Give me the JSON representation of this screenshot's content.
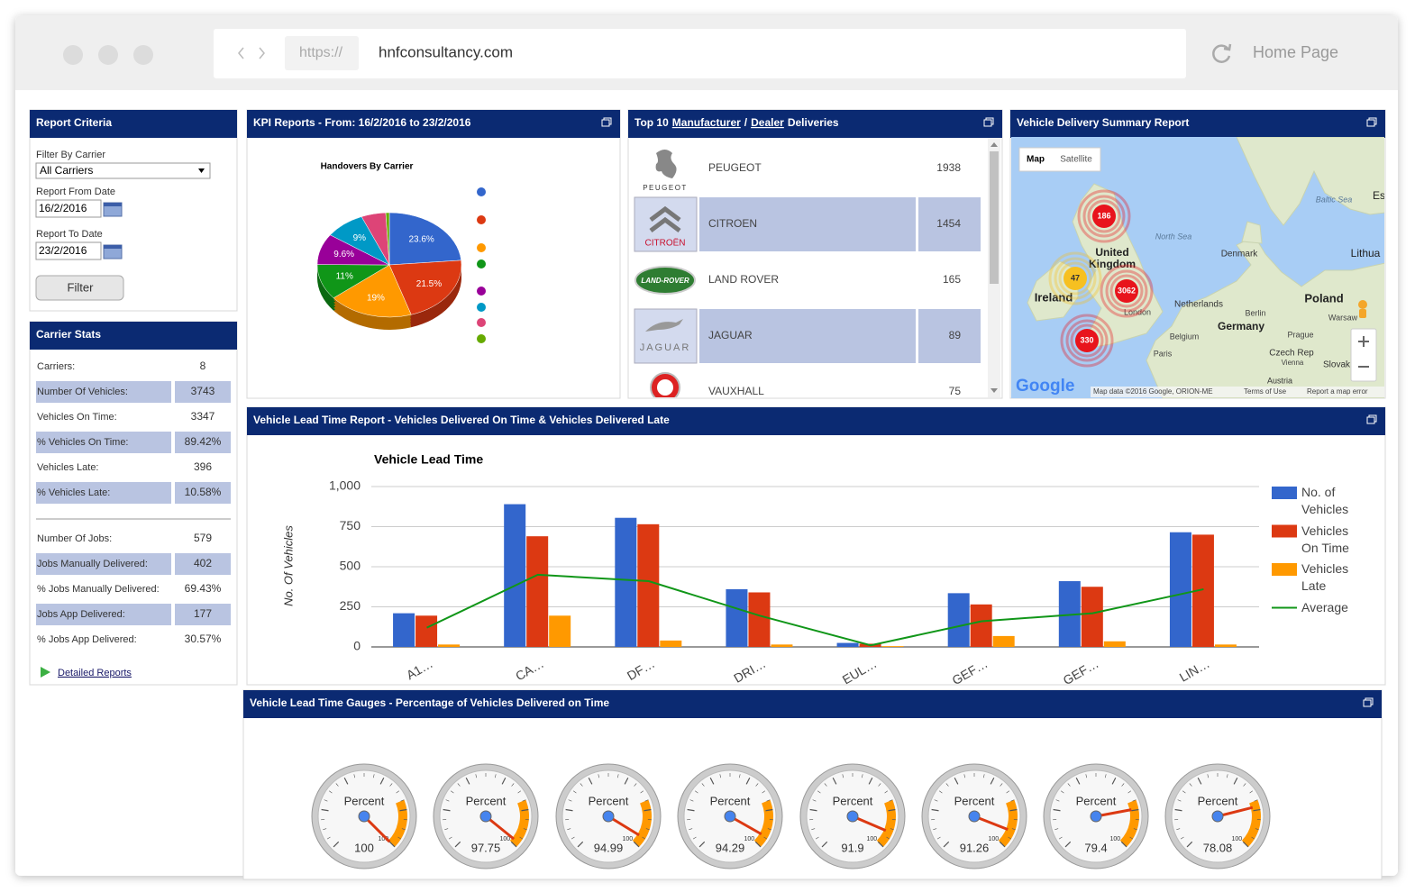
{
  "browser": {
    "scheme": "https://",
    "url": "hnfconsultancy.com",
    "home": "Home Page"
  },
  "report_criteria": {
    "title": "Report Criteria",
    "filter_label": "Filter By Carrier",
    "filter_value": "All Carriers",
    "from_label": "Report From Date",
    "from_value": "16/2/2016",
    "to_label": "Report To Date",
    "to_value": "23/2/2016",
    "button": "Filter"
  },
  "carrier_stats": {
    "title": "Carrier Stats",
    "rows": [
      [
        "Carriers:",
        "8"
      ],
      [
        "Number Of Vehicles:",
        "3743"
      ],
      [
        "Vehicles On Time:",
        "3347"
      ],
      [
        "% Vehicles On Time:",
        "89.42%"
      ],
      [
        "Vehicles Late:",
        "396"
      ],
      [
        "% Vehicles Late:",
        "10.58%"
      ],
      [
        "Number Of Jobs:",
        "579"
      ],
      [
        "Jobs Manually Delivered:",
        "402"
      ],
      [
        "% Jobs Manually Delivered:",
        "69.43%"
      ],
      [
        "Jobs App Delivered:",
        "177"
      ],
      [
        "% Jobs App Delivered:",
        "30.57%"
      ]
    ],
    "link": "Detailed Reports"
  },
  "kpi_panel": {
    "title": "KPI Reports - From: 16/2/2016 to 23/2/2016"
  },
  "deliveries": {
    "title_parts": [
      "Top 10",
      "Manufacturer",
      "/",
      "Dealer",
      "Deliveries"
    ],
    "rows": [
      {
        "logo": "PEUGEOT",
        "name": "PEUGEOT",
        "count": "1938"
      },
      {
        "logo": "CITROËN",
        "name": "CITROEN",
        "count": "1454"
      },
      {
        "logo": "LAND-ROVER",
        "name": "LAND ROVER",
        "count": "165"
      },
      {
        "logo": "JAGUAR",
        "name": "JAGUAR",
        "count": "89"
      },
      {
        "name": "VAUXHALL",
        "count": "75"
      }
    ]
  },
  "map": {
    "title": "Vehicle Delivery Summary Report",
    "buttons": [
      "Map",
      "Satellite"
    ],
    "labels": [
      "North Sea",
      "Baltic Sea",
      "Denmark",
      "United Kingdom",
      "Ireland",
      "Netherlands",
      "Berlin",
      "Poland",
      "Germany",
      "London",
      "Belgium",
      "Paris",
      "Prague",
      "Czech Rep",
      "Vienna",
      "Austria",
      "Slovak",
      "Warsaw",
      "Lithua",
      "Es"
    ],
    "clusters": [
      "186",
      "47",
      "3062",
      "330"
    ],
    "logo": "Google",
    "attribution": "Map data ©2016 Google, ORION-ME",
    "terms": "Terms of Use",
    "report": "Report a map error"
  },
  "lead_time_panel": {
    "title": "Vehicle Lead Time Report - Vehicles Delivered On Time & Vehicles Delivered Late"
  },
  "gauges": {
    "title": "Vehicle Lead Time Gauges - Percentage of Vehicles Delivered on Time",
    "label": "Percent",
    "range": [
      0,
      100
    ],
    "band": [
      75,
      100
    ],
    "band_color": "#ff9900",
    "values": [
      100,
      97.75,
      94.99,
      94.29,
      91.9,
      91.26,
      79.4,
      78.08
    ]
  },
  "chart_data": [
    {
      "type": "pie",
      "title": "Handovers By Carrier",
      "categories": [
        null,
        null,
        null,
        null,
        null,
        null,
        null,
        null
      ],
      "values": [
        23.6,
        21.5,
        19,
        11,
        9.6,
        9,
        5.5,
        0.8
      ],
      "value_labels": [
        "23.6%",
        "21.5%",
        "19%",
        "11%",
        "9.6%",
        "9%",
        null,
        null
      ],
      "colors": [
        "#3366cc",
        "#dc3912",
        "#ff9900",
        "#109618",
        "#990099",
        "#0099c6",
        "#dd4477",
        "#66aa00"
      ]
    },
    {
      "type": "bar",
      "title": "Vehicle Lead Time",
      "y_label": "No. Of Vehicles",
      "categories": [
        "A1…",
        "CA…",
        "DF…",
        "DRI…",
        "EUL…",
        "GEF…",
        "GEF…",
        "LIN…"
      ],
      "series": [
        {
          "name": "No. of Vehicles",
          "color": "#3366cc",
          "values": [
            210,
            890,
            805,
            360,
            25,
            335,
            410,
            715
          ]
        },
        {
          "name": "Vehicles On Time",
          "color": "#dc3912",
          "values": [
            195,
            690,
            765,
            340,
            20,
            265,
            375,
            700
          ]
        },
        {
          "name": "Vehicles Late",
          "color": "#ff9900",
          "values": [
            15,
            195,
            40,
            15,
            5,
            68,
            35,
            15
          ]
        },
        {
          "name": "Average",
          "type": "line",
          "color": "#109618",
          "values": [
            120,
            450,
            410,
            195,
            10,
            160,
            210,
            360
          ]
        }
      ],
      "ylim": [
        0,
        1000
      ],
      "yticks": [
        0,
        250,
        500,
        750,
        {
          "value": 1000,
          "label": "1,000"
        }
      ],
      "grid": true,
      "legend": "right"
    }
  ]
}
